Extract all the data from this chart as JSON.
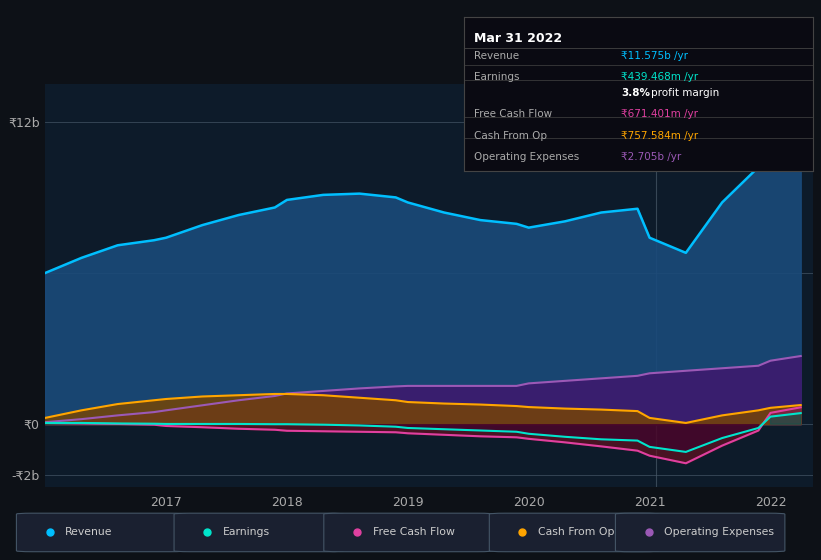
{
  "bg_color": "#0d1117",
  "chart_bg": "#0d1b2a",
  "ylim": [
    -2.5,
    13.5
  ],
  "xlim": [
    2016.0,
    2022.35
  ],
  "y_label_top": "₹12b",
  "y_label_zero": "₹0",
  "y_label_bottom": "-₹2b",
  "x_ticks": [
    2017,
    2018,
    2019,
    2020,
    2021,
    2022
  ],
  "tooltip": {
    "title": "Mar 31 2022",
    "rows": [
      {
        "label": "Revenue",
        "value": "₹11.575b /yr",
        "value_color": "#00bfff"
      },
      {
        "label": "Earnings",
        "value": "₹439.468m /yr",
        "value_color": "#00e5cc"
      },
      {
        "label": "",
        "value": "3.8% profit margin",
        "value_color": "#ffffff",
        "bold_part": "3.8%"
      },
      {
        "label": "Free Cash Flow",
        "value": "₹671.401m /yr",
        "value_color": "#e040a0"
      },
      {
        "label": "Cash From Op",
        "value": "₹757.584m /yr",
        "value_color": "#ffa500"
      },
      {
        "label": "Operating Expenses",
        "value": "₹2.705b /yr",
        "value_color": "#9b59b6"
      }
    ]
  },
  "legend": [
    {
      "label": "Revenue",
      "color": "#00bfff"
    },
    {
      "label": "Earnings",
      "color": "#00e5cc"
    },
    {
      "label": "Free Cash Flow",
      "color": "#e040a0"
    },
    {
      "label": "Cash From Op",
      "color": "#ffa500"
    },
    {
      "label": "Operating Expenses",
      "color": "#9b59b6"
    }
  ],
  "series": {
    "x": [
      2016.0,
      2016.3,
      2016.6,
      2016.9,
      2017.0,
      2017.3,
      2017.6,
      2017.9,
      2018.0,
      2018.3,
      2018.6,
      2018.9,
      2019.0,
      2019.3,
      2019.6,
      2019.9,
      2020.0,
      2020.3,
      2020.6,
      2020.9,
      2021.0,
      2021.3,
      2021.6,
      2021.9,
      2022.0,
      2022.25
    ],
    "revenue": [
      6.0,
      6.6,
      7.1,
      7.3,
      7.4,
      7.9,
      8.3,
      8.6,
      8.9,
      9.1,
      9.15,
      9.0,
      8.8,
      8.4,
      8.1,
      7.95,
      7.8,
      8.05,
      8.4,
      8.55,
      7.4,
      6.8,
      8.8,
      10.2,
      11.5,
      11.575
    ],
    "earnings": [
      0.05,
      0.05,
      0.03,
      0.02,
      0.01,
      0.01,
      0.01,
      0.0,
      0.0,
      -0.02,
      -0.05,
      -0.1,
      -0.15,
      -0.2,
      -0.25,
      -0.3,
      -0.38,
      -0.5,
      -0.6,
      -0.65,
      -0.9,
      -1.1,
      -0.55,
      -0.15,
      0.3,
      0.44
    ],
    "free_cash_flow": [
      0.05,
      0.03,
      0.01,
      -0.02,
      -0.07,
      -0.12,
      -0.18,
      -0.22,
      -0.26,
      -0.28,
      -0.3,
      -0.32,
      -0.36,
      -0.42,
      -0.48,
      -0.52,
      -0.58,
      -0.72,
      -0.88,
      -1.05,
      -1.25,
      -1.55,
      -0.85,
      -0.25,
      0.45,
      0.67
    ],
    "cash_from_op": [
      0.25,
      0.55,
      0.8,
      0.95,
      1.0,
      1.1,
      1.15,
      1.2,
      1.2,
      1.15,
      1.05,
      0.95,
      0.88,
      0.82,
      0.78,
      0.72,
      0.68,
      0.62,
      0.58,
      0.52,
      0.25,
      0.05,
      0.35,
      0.55,
      0.65,
      0.76
    ],
    "operating_expenses": [
      0.08,
      0.2,
      0.35,
      0.48,
      0.55,
      0.75,
      0.95,
      1.12,
      1.22,
      1.32,
      1.42,
      1.5,
      1.52,
      1.52,
      1.52,
      1.52,
      1.62,
      1.72,
      1.82,
      1.92,
      2.02,
      2.12,
      2.22,
      2.32,
      2.52,
      2.705
    ]
  }
}
